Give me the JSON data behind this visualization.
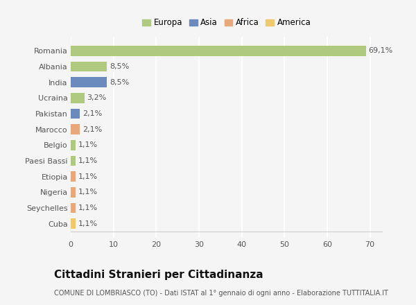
{
  "categories": [
    "Romania",
    "Albania",
    "India",
    "Ucraina",
    "Pakistan",
    "Marocco",
    "Belgio",
    "Paesi Bassi",
    "Etiopia",
    "Nigeria",
    "Seychelles",
    "Cuba"
  ],
  "values": [
    69.1,
    8.5,
    8.5,
    3.2,
    2.1,
    2.1,
    1.1,
    1.1,
    1.1,
    1.1,
    1.1,
    1.1
  ],
  "labels": [
    "69,1%",
    "8,5%",
    "8,5%",
    "3,2%",
    "2,1%",
    "2,1%",
    "1,1%",
    "1,1%",
    "1,1%",
    "1,1%",
    "1,1%",
    "1,1%"
  ],
  "colors": [
    "#afc97e",
    "#afc97e",
    "#6b8bbf",
    "#afc97e",
    "#6b8bbf",
    "#e8a87c",
    "#afc97e",
    "#afc97e",
    "#e8a87c",
    "#e8a87c",
    "#e8a87c",
    "#f0c96b"
  ],
  "legend_labels": [
    "Europa",
    "Asia",
    "Africa",
    "America"
  ],
  "legend_colors": [
    "#afc97e",
    "#6b8bbf",
    "#e8a87c",
    "#f0c96b"
  ],
  "title": "Cittadini Stranieri per Cittadinanza",
  "subtitle": "COMUNE DI LOMBRIASCO (TO) - Dati ISTAT al 1° gennaio di ogni anno - Elaborazione TUTTITALIA.IT",
  "xlim": [
    0,
    73
  ],
  "xticks": [
    0,
    10,
    20,
    30,
    40,
    50,
    60,
    70
  ],
  "background_color": "#f5f5f5",
  "grid_color": "#ffffff",
  "bar_height": 0.65,
  "title_fontsize": 11,
  "subtitle_fontsize": 7,
  "tick_fontsize": 8,
  "label_fontsize": 8
}
